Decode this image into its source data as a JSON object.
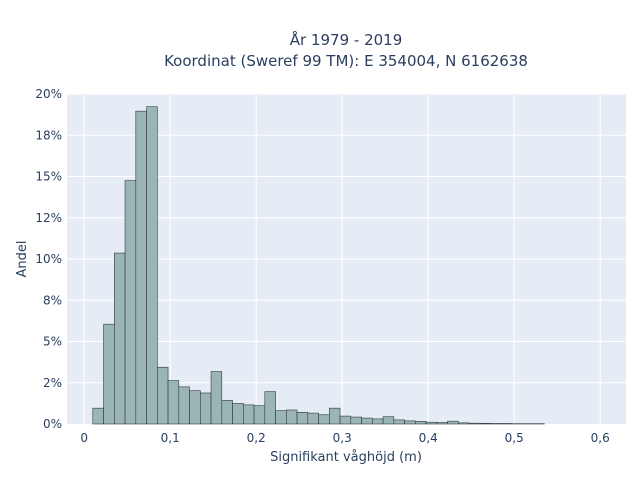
{
  "chart_data": {
    "type": "bar",
    "title_line1": "År 1979 - 2019",
    "title_line2": "Koordinat (Sweref 99 TM): E 354004, N 6162638",
    "xlabel": "Signifikant våghöjd (m)",
    "ylabel": "Andel",
    "xlim": [
      -0.02,
      0.63
    ],
    "ylim": [
      0,
      0.2
    ],
    "grid": true,
    "x_ticks": [
      0,
      0.1,
      0.2,
      0.3,
      0.4,
      0.5,
      0.6
    ],
    "x_tick_labels": [
      "0",
      "0,1",
      "0,2",
      "0,3",
      "0,4",
      "0,5",
      "0,6"
    ],
    "y_ticks": [
      0,
      0.025,
      0.05,
      0.075,
      0.1,
      0.125,
      0.15,
      0.175,
      0.2
    ],
    "y_tick_labels": [
      "0%",
      "2%",
      "5%",
      "8%",
      "10%",
      "12%",
      "15%",
      "18%",
      "20%"
    ],
    "bin_width": 0.0125,
    "bin_starts": [
      0.01,
      0.0225,
      0.035,
      0.0475,
      0.06,
      0.0725,
      0.085,
      0.0975,
      0.11,
      0.1225,
      0.135,
      0.1475,
      0.16,
      0.1725,
      0.185,
      0.1975,
      0.21,
      0.2225,
      0.235,
      0.2475,
      0.26,
      0.2725,
      0.285,
      0.2975,
      0.31,
      0.3225,
      0.335,
      0.3475,
      0.36,
      0.3725,
      0.385,
      0.3975,
      0.41,
      0.4225,
      0.435,
      0.4475,
      0.46,
      0.4725,
      0.485,
      0.4975,
      0.51,
      0.5225
    ],
    "values": [
      0.0096,
      0.0605,
      0.1036,
      0.1475,
      0.1896,
      0.1923,
      0.0344,
      0.0263,
      0.0225,
      0.0202,
      0.0188,
      0.0318,
      0.0143,
      0.0125,
      0.0116,
      0.0111,
      0.0196,
      0.0081,
      0.0085,
      0.0071,
      0.0066,
      0.0056,
      0.0096,
      0.0048,
      0.0042,
      0.0036,
      0.0031,
      0.0044,
      0.0025,
      0.0019,
      0.0016,
      0.0011,
      0.0009,
      0.0017,
      0.0007,
      0.0005,
      0.0004,
      0.0003,
      0.0003,
      0.0002,
      0.0002,
      0.0002
    ],
    "bar_color": "#9bb5b5",
    "bar_edge_color": "#2b3a3a",
    "plot_bg": "#e5ecf6",
    "grid_color": "#ffffff"
  }
}
